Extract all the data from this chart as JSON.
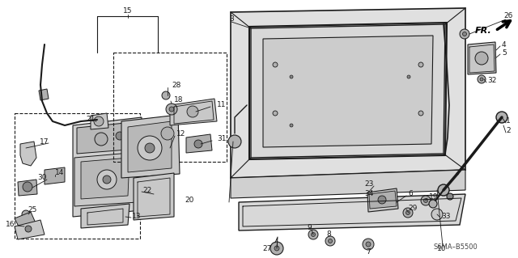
{
  "background_color": "#ffffff",
  "figsize": [
    6.4,
    3.19
  ],
  "dpi": 100,
  "diagram_ref": "S6MA-B5500",
  "image_b64": ""
}
